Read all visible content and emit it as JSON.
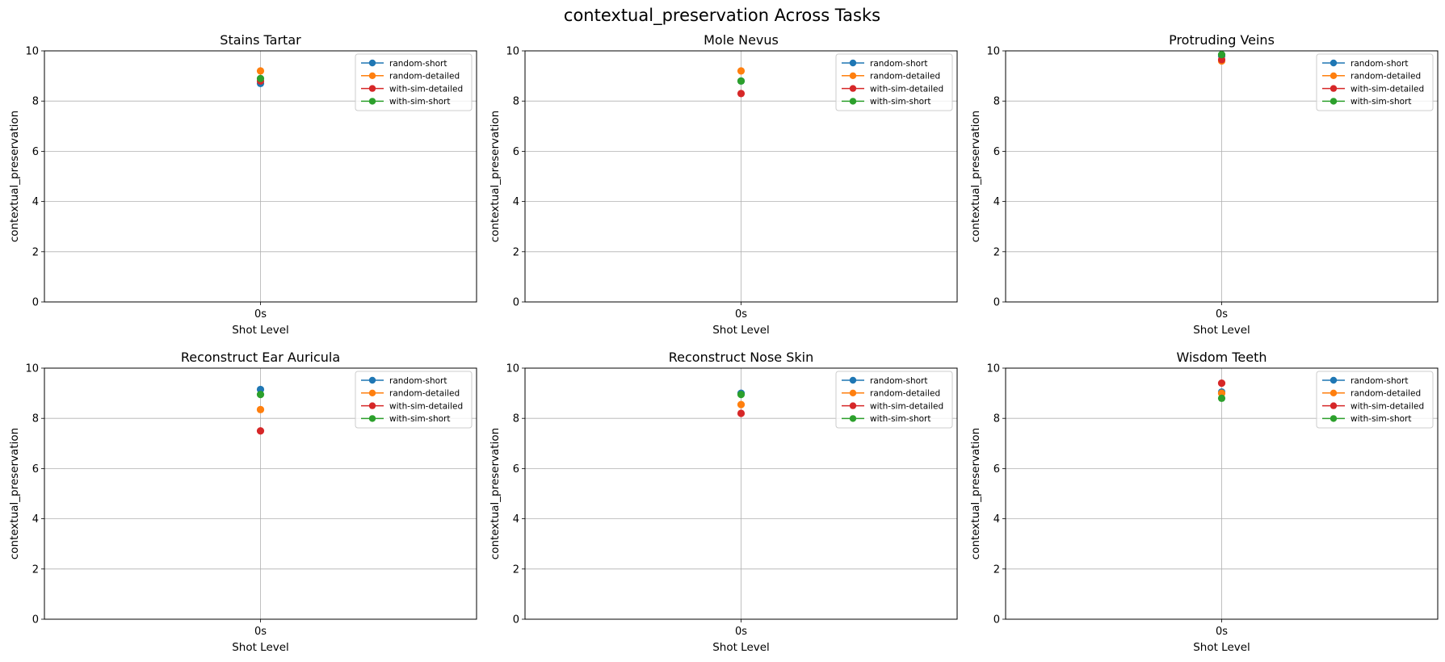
{
  "figure": {
    "title": "contextual_preservation Across Tasks"
  },
  "chart_data": [
    {
      "type": "line",
      "title": "Stains Tartar",
      "xlabel": "Shot Level",
      "ylabel": "contextual_preservation",
      "categories": [
        "0s"
      ],
      "ylim": [
        0,
        10
      ],
      "yticks": [
        "0",
        "2",
        "4",
        "6",
        "8",
        "10"
      ],
      "grid": true,
      "legend": "top-right",
      "series": [
        {
          "name": "random-short",
          "color": "#1f77b4",
          "values": [
            8.7
          ]
        },
        {
          "name": "random-detailed",
          "color": "#ff7f0e",
          "values": [
            9.2
          ]
        },
        {
          "name": "with-sim-detailed",
          "color": "#d62728",
          "values": [
            8.8
          ]
        },
        {
          "name": "with-sim-short",
          "color": "#2ca02c",
          "values": [
            8.9
          ]
        }
      ]
    },
    {
      "type": "line",
      "title": "Mole Nevus",
      "xlabel": "Shot Level",
      "ylabel": "contextual_preservation",
      "categories": [
        "0s"
      ],
      "ylim": [
        0,
        10
      ],
      "yticks": [
        "0",
        "2",
        "4",
        "6",
        "8",
        "10"
      ],
      "grid": true,
      "legend": "top-right",
      "series": [
        {
          "name": "random-short",
          "color": "#1f77b4",
          "values": [
            8.8
          ]
        },
        {
          "name": "random-detailed",
          "color": "#ff7f0e",
          "values": [
            9.2
          ]
        },
        {
          "name": "with-sim-detailed",
          "color": "#d62728",
          "values": [
            8.3
          ]
        },
        {
          "name": "with-sim-short",
          "color": "#2ca02c",
          "values": [
            8.8
          ]
        }
      ]
    },
    {
      "type": "line",
      "title": "Protruding Veins",
      "xlabel": "Shot Level",
      "ylabel": "contextual_preservation",
      "categories": [
        "0s"
      ],
      "ylim": [
        0,
        10
      ],
      "yticks": [
        "0",
        "2",
        "4",
        "6",
        "8",
        "10"
      ],
      "grid": true,
      "legend": "top-right",
      "series": [
        {
          "name": "random-short",
          "color": "#1f77b4",
          "values": [
            9.8
          ]
        },
        {
          "name": "random-detailed",
          "color": "#ff7f0e",
          "values": [
            9.6
          ]
        },
        {
          "name": "with-sim-detailed",
          "color": "#d62728",
          "values": [
            9.65
          ]
        },
        {
          "name": "with-sim-short",
          "color": "#2ca02c",
          "values": [
            9.85
          ]
        }
      ]
    },
    {
      "type": "line",
      "title": "Reconstruct Ear Auricula",
      "xlabel": "Shot Level",
      "ylabel": "contextual_preservation",
      "categories": [
        "0s"
      ],
      "ylim": [
        0,
        10
      ],
      "yticks": [
        "0",
        "2",
        "4",
        "6",
        "8",
        "10"
      ],
      "grid": true,
      "legend": "top-right",
      "series": [
        {
          "name": "random-short",
          "color": "#1f77b4",
          "values": [
            9.15
          ]
        },
        {
          "name": "random-detailed",
          "color": "#ff7f0e",
          "values": [
            8.35
          ]
        },
        {
          "name": "with-sim-detailed",
          "color": "#d62728",
          "values": [
            7.5
          ]
        },
        {
          "name": "with-sim-short",
          "color": "#2ca02c",
          "values": [
            8.95
          ]
        }
      ]
    },
    {
      "type": "line",
      "title": "Reconstruct Nose Skin",
      "xlabel": "Shot Level",
      "ylabel": "contextual_preservation",
      "categories": [
        "0s"
      ],
      "ylim": [
        0,
        10
      ],
      "yticks": [
        "0",
        "2",
        "4",
        "6",
        "8",
        "10"
      ],
      "grid": true,
      "legend": "top-right",
      "series": [
        {
          "name": "random-short",
          "color": "#1f77b4",
          "values": [
            9.0
          ]
        },
        {
          "name": "random-detailed",
          "color": "#ff7f0e",
          "values": [
            8.55
          ]
        },
        {
          "name": "with-sim-detailed",
          "color": "#d62728",
          "values": [
            8.2
          ]
        },
        {
          "name": "with-sim-short",
          "color": "#2ca02c",
          "values": [
            8.95
          ]
        }
      ]
    },
    {
      "type": "line",
      "title": "Wisdom Teeth",
      "xlabel": "Shot Level",
      "ylabel": "contextual_preservation",
      "categories": [
        "0s"
      ],
      "ylim": [
        0,
        10
      ],
      "yticks": [
        "0",
        "2",
        "4",
        "6",
        "8",
        "10"
      ],
      "grid": true,
      "legend": "top-right",
      "series": [
        {
          "name": "random-short",
          "color": "#1f77b4",
          "values": [
            9.05
          ]
        },
        {
          "name": "random-detailed",
          "color": "#ff7f0e",
          "values": [
            9.0
          ]
        },
        {
          "name": "with-sim-detailed",
          "color": "#d62728",
          "values": [
            9.4
          ]
        },
        {
          "name": "with-sim-short",
          "color": "#2ca02c",
          "values": [
            8.8
          ]
        }
      ]
    }
  ]
}
